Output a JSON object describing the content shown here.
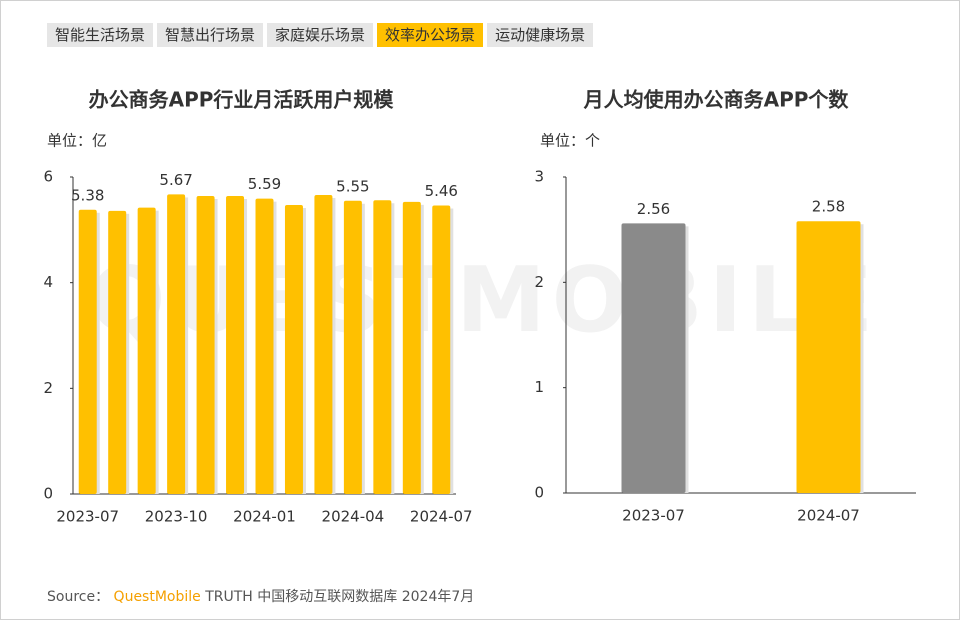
{
  "tabs": {
    "items": [
      "智能生活场景",
      "智慧出行场景",
      "家庭娱乐场景",
      "效率办公场景",
      "运动健康场景"
    ],
    "active": 3
  },
  "watermark": "QUESTMOBILE",
  "chart_data": [
    {
      "type": "bar",
      "title": "办公商务APP行业月活跃用户规模",
      "unit": "单位：亿",
      "categories": [
        "2023-07",
        null,
        null,
        "2023-10",
        null,
        null,
        "2024-01",
        null,
        null,
        "2024-04",
        null,
        null,
        "2024-07"
      ],
      "values": [
        5.38,
        5.36,
        5.42,
        5.67,
        5.64,
        5.64,
        5.59,
        5.47,
        5.66,
        5.55,
        5.56,
        5.53,
        5.46
      ],
      "value_labels": [
        "5.38",
        null,
        null,
        "5.67",
        null,
        null,
        "5.59",
        null,
        null,
        "5.55",
        null,
        null,
        "5.46"
      ],
      "color": "#ffc000",
      "ylim": [
        0,
        6
      ],
      "yticks": [
        0,
        2,
        4,
        6
      ]
    },
    {
      "type": "bar",
      "title": "月人均使用办公商务APP个数",
      "unit": "单位：个",
      "categories": [
        "2023-07",
        "2024-07"
      ],
      "values": [
        2.56,
        2.58
      ],
      "colors": [
        "#8a8a8a",
        "#ffc000"
      ],
      "ylim": [
        0,
        3
      ],
      "yticks": [
        0,
        1,
        2,
        3
      ]
    }
  ],
  "source": {
    "label": "Source：",
    "brand": "QuestMobile",
    "text": "TRUTH 中国移动互联网数据库 2024年7月"
  }
}
